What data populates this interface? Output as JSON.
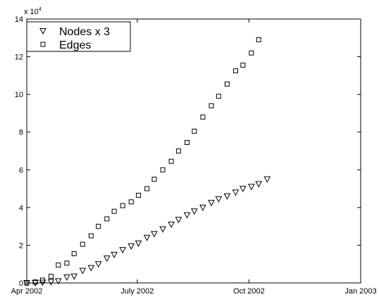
{
  "chart_data": {
    "type": "scatter",
    "title": "",
    "xlabel": "",
    "ylabel": "",
    "y_multiplier_label": "x 10",
    "y_multiplier_exp": "4",
    "xlim": [
      "2002-04-01",
      "2003-01-01"
    ],
    "ylim": [
      0,
      140000
    ],
    "xticks": [
      {
        "date": "2002-04-01",
        "label": "Apr 2002"
      },
      {
        "date": "2002-07-01",
        "label": "July 2002"
      },
      {
        "date": "2002-10-01",
        "label": "Oct 2002"
      },
      {
        "date": "2003-01-01",
        "label": "Jan 2003"
      }
    ],
    "yticks": [
      {
        "value": 0,
        "label": "0"
      },
      {
        "value": 20000,
        "label": "2"
      },
      {
        "value": 40000,
        "label": "4"
      },
      {
        "value": 60000,
        "label": "6"
      },
      {
        "value": 80000,
        "label": "8"
      },
      {
        "value": 100000,
        "label": "10"
      },
      {
        "value": 120000,
        "label": "12"
      },
      {
        "value": 140000,
        "label": "14"
      }
    ],
    "grid": false,
    "legend_position": "top-left",
    "series": [
      {
        "name": "Nodes x 3",
        "marker": "triangle-down",
        "color": "#000000",
        "points": [
          {
            "x": "2002-04-01",
            "y": 0
          },
          {
            "x": "2002-04-08",
            "y": 0
          },
          {
            "x": "2002-04-14",
            "y": 200
          },
          {
            "x": "2002-04-21",
            "y": 500
          },
          {
            "x": "2002-04-27",
            "y": 1000
          },
          {
            "x": "2002-05-04",
            "y": 3000
          },
          {
            "x": "2002-05-10",
            "y": 3500
          },
          {
            "x": "2002-05-17",
            "y": 6500
          },
          {
            "x": "2002-05-24",
            "y": 8000
          },
          {
            "x": "2002-05-30",
            "y": 10000
          },
          {
            "x": "2002-06-06",
            "y": 13000
          },
          {
            "x": "2002-06-12",
            "y": 15000
          },
          {
            "x": "2002-06-19",
            "y": 17500
          },
          {
            "x": "2002-06-26",
            "y": 19500
          },
          {
            "x": "2002-07-02",
            "y": 21000
          },
          {
            "x": "2002-07-09",
            "y": 24000
          },
          {
            "x": "2002-07-15",
            "y": 26000
          },
          {
            "x": "2002-07-22",
            "y": 28500
          },
          {
            "x": "2002-07-29",
            "y": 31000
          },
          {
            "x": "2002-08-04",
            "y": 33500
          },
          {
            "x": "2002-08-11",
            "y": 36000
          },
          {
            "x": "2002-08-17",
            "y": 38000
          },
          {
            "x": "2002-08-24",
            "y": 40000
          },
          {
            "x": "2002-08-31",
            "y": 42500
          },
          {
            "x": "2002-09-06",
            "y": 44500
          },
          {
            "x": "2002-09-13",
            "y": 46000
          },
          {
            "x": "2002-09-20",
            "y": 48000
          },
          {
            "x": "2002-09-26",
            "y": 50000
          },
          {
            "x": "2002-10-03",
            "y": 51000
          },
          {
            "x": "2002-10-09",
            "y": 52500
          },
          {
            "x": "2002-10-16",
            "y": 55000
          }
        ]
      },
      {
        "name": "Edges",
        "marker": "square",
        "color": "#000000",
        "points": [
          {
            "x": "2002-04-01",
            "y": 0
          },
          {
            "x": "2002-04-08",
            "y": 500
          },
          {
            "x": "2002-04-14",
            "y": 1500
          },
          {
            "x": "2002-04-21",
            "y": 3500
          },
          {
            "x": "2002-04-27",
            "y": 9500
          },
          {
            "x": "2002-05-04",
            "y": 10500
          },
          {
            "x": "2002-05-10",
            "y": 15500
          },
          {
            "x": "2002-05-17",
            "y": 20500
          },
          {
            "x": "2002-05-24",
            "y": 25000
          },
          {
            "x": "2002-05-30",
            "y": 30000
          },
          {
            "x": "2002-06-06",
            "y": 34000
          },
          {
            "x": "2002-06-12",
            "y": 38000
          },
          {
            "x": "2002-06-19",
            "y": 41000
          },
          {
            "x": "2002-06-26",
            "y": 43000
          },
          {
            "x": "2002-07-02",
            "y": 46500
          },
          {
            "x": "2002-07-09",
            "y": 50000
          },
          {
            "x": "2002-07-15",
            "y": 55000
          },
          {
            "x": "2002-07-22",
            "y": 60000
          },
          {
            "x": "2002-07-29",
            "y": 64500
          },
          {
            "x": "2002-08-04",
            "y": 70000
          },
          {
            "x": "2002-08-11",
            "y": 74500
          },
          {
            "x": "2002-08-17",
            "y": 80500
          },
          {
            "x": "2002-08-24",
            "y": 88000
          },
          {
            "x": "2002-08-31",
            "y": 94000
          },
          {
            "x": "2002-09-06",
            "y": 99000
          },
          {
            "x": "2002-09-13",
            "y": 105500
          },
          {
            "x": "2002-09-20",
            "y": 112500
          },
          {
            "x": "2002-09-26",
            "y": 115500
          },
          {
            "x": "2002-10-03",
            "y": 122000
          },
          {
            "x": "2002-10-09",
            "y": 129000
          }
        ]
      }
    ]
  }
}
